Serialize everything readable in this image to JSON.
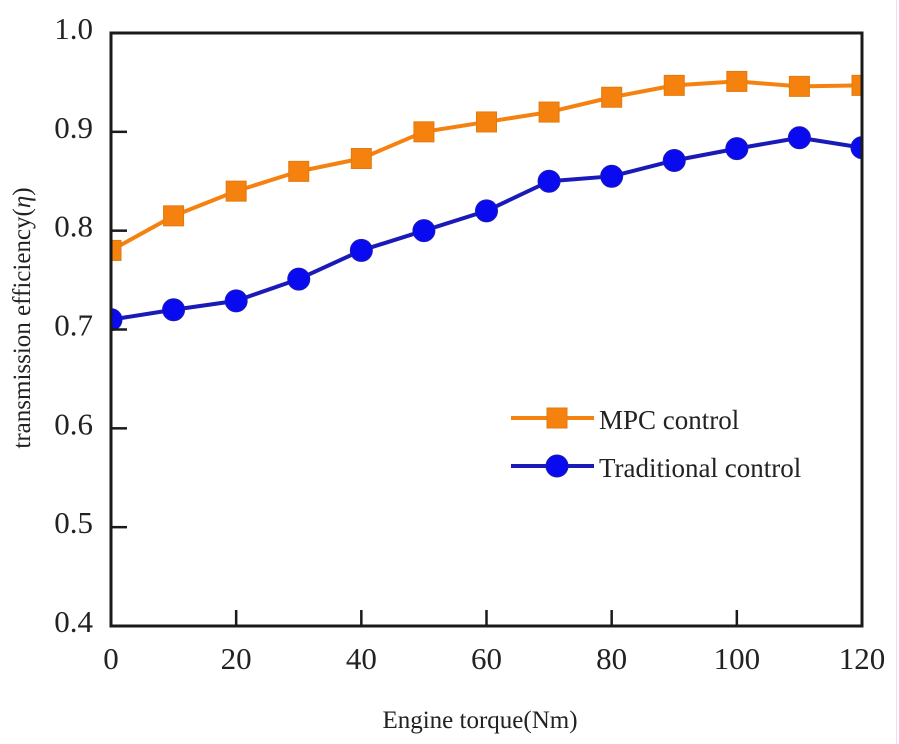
{
  "chart_data": {
    "type": "line",
    "title": "",
    "xlabel": "Engine torque(Nm)",
    "ylabel_prefix": "transmission efficiency(",
    "ylabel_symbol": "η",
    "ylabel_suffix": ")",
    "xlim": [
      0,
      120
    ],
    "ylim": [
      0.4,
      1.0
    ],
    "xticks": [
      0,
      20,
      40,
      60,
      80,
      100,
      120
    ],
    "xtick_labels": [
      "0",
      "20",
      "40",
      "60",
      "80",
      "100",
      "120"
    ],
    "yticks": [
      0.4,
      0.5,
      0.6,
      0.7,
      0.8,
      0.9,
      1.0
    ],
    "ytick_labels": [
      "0.4",
      "0.5",
      "0.6",
      "0.7",
      "0.8",
      "0.9",
      "1.0"
    ],
    "grid": false,
    "legend_position": "center-right",
    "x": [
      0,
      10,
      20,
      30,
      40,
      50,
      60,
      70,
      80,
      90,
      100,
      110,
      120
    ],
    "series": [
      {
        "name": "MPC control",
        "marker": "square",
        "color": "#f5820f",
        "values": [
          0.78,
          0.815,
          0.84,
          0.86,
          0.873,
          0.9,
          0.91,
          0.92,
          0.935,
          0.947,
          0.951,
          0.946,
          0.947
        ]
      },
      {
        "name": "Traditional control",
        "marker": "circle",
        "color": "#0a0af0",
        "line_color": "#1a1ab8",
        "values": [
          0.71,
          0.72,
          0.729,
          0.751,
          0.78,
          0.8,
          0.82,
          0.85,
          0.855,
          0.871,
          0.883,
          0.894,
          0.884
        ]
      }
    ]
  }
}
